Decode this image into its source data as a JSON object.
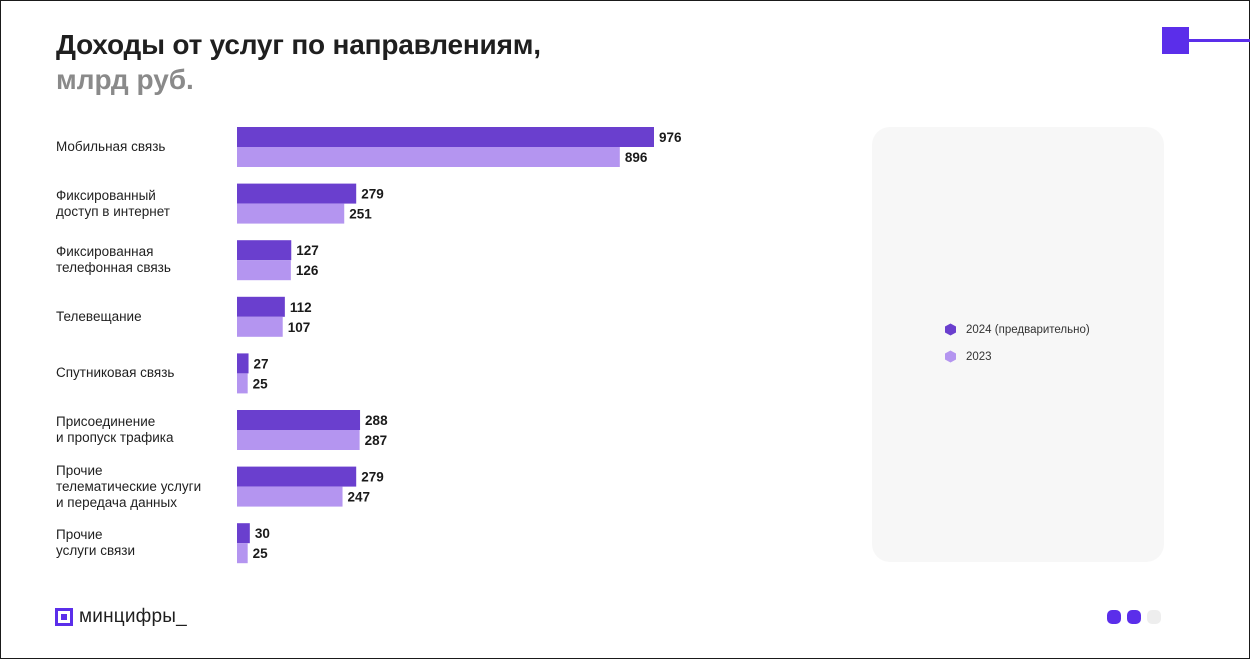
{
  "header": {
    "title": "Доходы от услуг по направлениям,",
    "subtitle": "млрд руб."
  },
  "chart_data": {
    "type": "bar",
    "orientation": "horizontal",
    "title": "Доходы от услуг по направлениям,",
    "subtitle": "млрд руб.",
    "categories": [
      "Мобильная связь",
      "Фиксированный\nдоступ в интернет",
      "Фиксированная\nтелефонная связь",
      "Телевещание",
      "Спутниковая связь",
      "Присоединение\nи пропуск трафика",
      "Прочие\nтелематические услуги\nи передача данных",
      "Прочие\nуслуги связи"
    ],
    "series": [
      {
        "name": "2024 (предварительно)",
        "color": "#6a3fce",
        "values": [
          976,
          279,
          127,
          112,
          27,
          288,
          279,
          30
        ]
      },
      {
        "name": "2023",
        "color": "#b495f0",
        "values": [
          896,
          251,
          126,
          107,
          25,
          287,
          247,
          25
        ]
      }
    ],
    "xlim": [
      0,
      976
    ],
    "grid": false,
    "data_labels": true,
    "legend_position": "right"
  },
  "colors": {
    "accent": "#5b2eea",
    "series_2024": "#6a3fce",
    "series_2023": "#b495f0",
    "pager_active": "#5b2eea",
    "pager_inactive": "#eeeeee"
  },
  "footer": {
    "logo_text": "минцифры_",
    "logo_icon": "mintsifry-logo-icon",
    "pager_dots": [
      true,
      true,
      false
    ]
  }
}
